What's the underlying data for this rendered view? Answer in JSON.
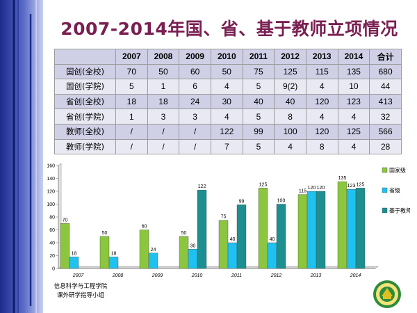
{
  "title": "2007-2014年国、省、基于教师立项情况",
  "table": {
    "corner": "",
    "headers": [
      "2007",
      "2008",
      "2009",
      "2010",
      "2011",
      "2012",
      "2013",
      "2014",
      "合计"
    ],
    "rows": [
      {
        "label": "国创(全校)",
        "cells": [
          "70",
          "50",
          "60",
          "50",
          "75",
          "125",
          "115",
          "135",
          "680"
        ]
      },
      {
        "label": "国创(学院)",
        "cells": [
          "5",
          "1",
          "6",
          "4",
          "5",
          "9(2)",
          "4",
          "10",
          "44"
        ]
      },
      {
        "label": "省创(全校)",
        "cells": [
          "18",
          "18",
          "24",
          "30",
          "40",
          "40",
          "120",
          "123",
          "413"
        ]
      },
      {
        "label": "省创(学院)",
        "cells": [
          "1",
          "3",
          "3",
          "4",
          "5",
          "8",
          "4",
          "4",
          "32"
        ]
      },
      {
        "label": "教师(全校)",
        "cells": [
          "/",
          "/",
          "/",
          "122",
          "99",
          "100",
          "120",
          "125",
          "566"
        ]
      },
      {
        "label": "教师(学院)",
        "cells": [
          "/",
          "/",
          "/",
          "7",
          "5",
          "4",
          "8",
          "4",
          "28"
        ]
      }
    ]
  },
  "chart_data": {
    "type": "bar",
    "categories": [
      "2007",
      "2008",
      "2009",
      "2010",
      "2011",
      "2012",
      "2013",
      "2014"
    ],
    "series": [
      {
        "name": "国家级",
        "color": "#8cc63f",
        "values": [
          70,
          50,
          60,
          50,
          75,
          125,
          115,
          135
        ]
      },
      {
        "name": "省级",
        "color": "#1fc1f0",
        "values": [
          18,
          18,
          24,
          30,
          40,
          40,
          120,
          123
        ]
      },
      {
        "name": "基于教师",
        "color": "#1d8f91",
        "values": [
          null,
          null,
          null,
          122,
          99,
          100,
          120,
          125
        ]
      }
    ],
    "data_labels": [
      [
        "70",
        "50",
        "60",
        "50",
        "75",
        "125",
        "115",
        "135"
      ],
      [
        "18",
        "18",
        "24",
        "30",
        "40",
        "40",
        "120",
        "123"
      ],
      [
        "",
        "",
        "",
        "122",
        "99",
        "100",
        "120",
        "125"
      ]
    ],
    "y_ticks": [
      "0",
      "20",
      "40",
      "60",
      "80",
      "100",
      "120",
      "140",
      "160"
    ],
    "ylim": [
      0,
      160
    ],
    "grid": false,
    "legend_position": "right"
  },
  "footer": {
    "line1": "信息科学与工程学院",
    "line2": "课外研学指导小组"
  },
  "colors": {
    "title": "#7a1f52",
    "left_band_dark": "#1c2a8c",
    "left_band_light": "#a9b4e6",
    "table_header_bg": "#cfcfe6",
    "logo_green": "#2e8b3a",
    "logo_gold": "#e0c020"
  },
  "logo_icon": "university-seal-icon"
}
